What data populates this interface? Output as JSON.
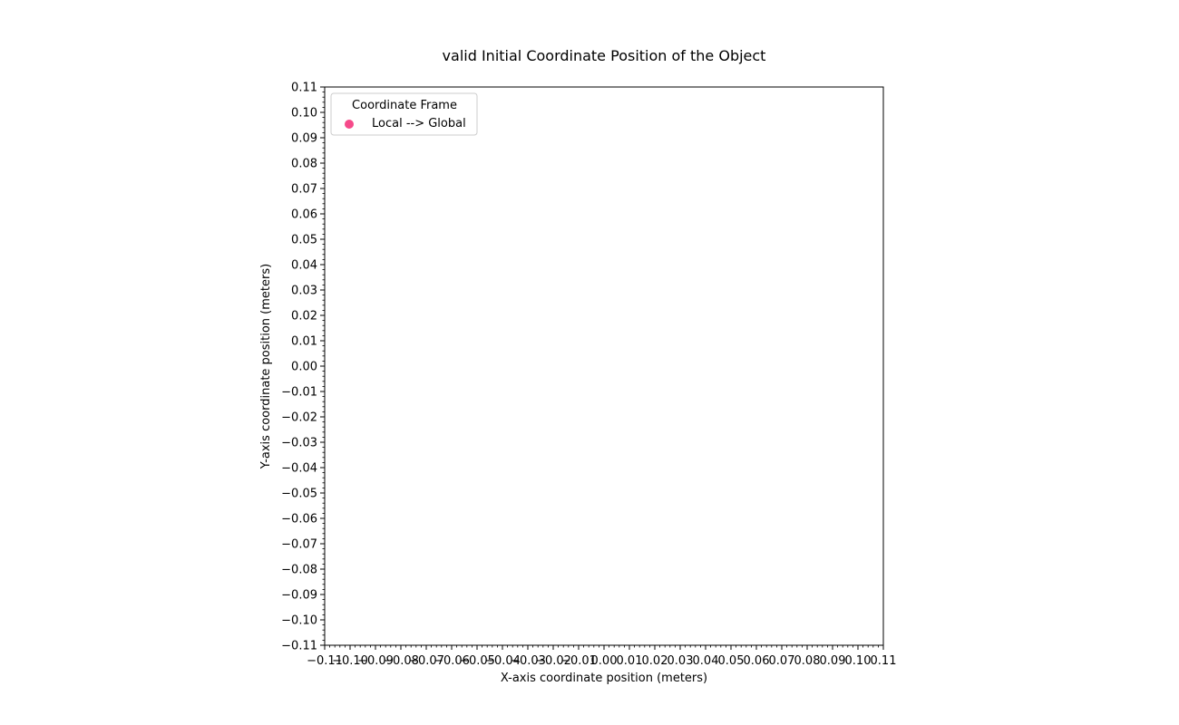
{
  "chart_data": {
    "type": "scatter",
    "title": "valid Initial Coordinate Position of the Object",
    "xlabel": "X-axis coordinate position (meters)",
    "ylabel": "Y-axis coordinate position (meters)",
    "xlim": [
      -0.11,
      0.11
    ],
    "ylim": [
      -0.11,
      0.11
    ],
    "major_tick_step": 0.01,
    "minor_ticks": true,
    "grid": false,
    "x_tick_labels": [
      "−0.11",
      "−0.10",
      "−0.09",
      "−0.08",
      "−0.07",
      "−0.06",
      "−0.05",
      "−0.04",
      "−0.03",
      "−0.02",
      "−0.01",
      "0.00",
      "0.01",
      "0.02",
      "0.03",
      "0.04",
      "0.05",
      "0.06",
      "0.07",
      "0.08",
      "0.09",
      "0.10",
      "0.11"
    ],
    "y_tick_labels": [
      "−0.11",
      "−0.10",
      "−0.09",
      "−0.08",
      "−0.07",
      "−0.06",
      "−0.05",
      "−0.04",
      "−0.03",
      "−0.02",
      "−0.01",
      "0.00",
      "0.01",
      "0.02",
      "0.03",
      "0.04",
      "0.05",
      "0.06",
      "0.07",
      "0.08",
      "0.09",
      "0.10",
      "0.11"
    ],
    "legend": {
      "title": "Coordinate Frame",
      "placement": "upper-left",
      "entries": [
        {
          "label": "Local --> Global",
          "color": "#f64a8a",
          "marker": "circle"
        }
      ]
    },
    "series": [
      {
        "name": "Local --> Global",
        "color": "#f64a8a",
        "points": []
      }
    ]
  }
}
